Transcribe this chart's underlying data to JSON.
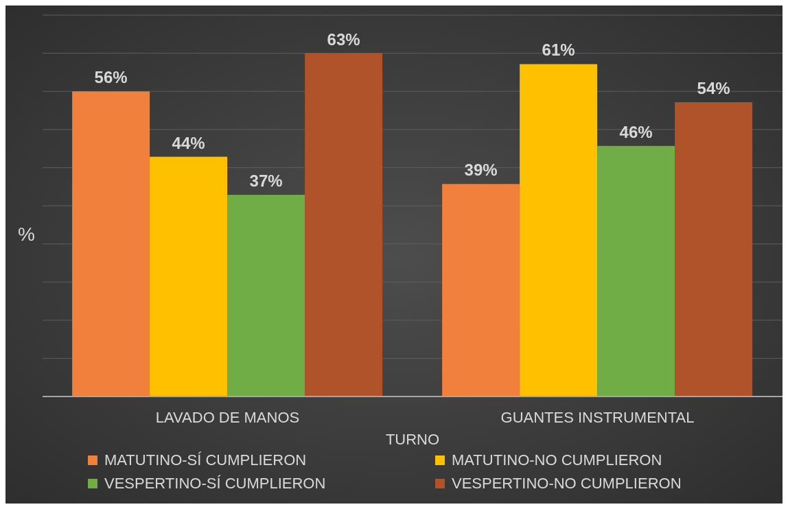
{
  "chart_data": {
    "type": "bar",
    "xlabel": "TURNO",
    "ylabel": "%",
    "categories": [
      "LAVADO DE MANOS",
      "GUANTES INSTRUMENTAL"
    ],
    "series": [
      {
        "name": "MATUTINO-SÍ CUMPLIERON",
        "color": "#f0803c",
        "values": [
          56,
          39
        ],
        "value_labels": [
          "56%",
          "39%"
        ]
      },
      {
        "name": "MATUTINO-NO CUMPLIERON",
        "color": "#ffc000",
        "values": [
          44,
          61
        ],
        "value_labels": [
          "44%",
          "61%"
        ]
      },
      {
        "name": "VESPERTINO-SÍ CUMPLIERON",
        "color": "#70ad47",
        "values": [
          37,
          46
        ],
        "value_labels": [
          "37%",
          "46%"
        ]
      },
      {
        "name": "VESPERTINO-NO CUMPLIERON",
        "color": "#b0522a",
        "values": [
          63,
          54
        ],
        "value_labels": [
          "63%",
          "54%"
        ]
      }
    ],
    "tick_labels": "x",
    "grid": "y",
    "legend": "bottom"
  }
}
